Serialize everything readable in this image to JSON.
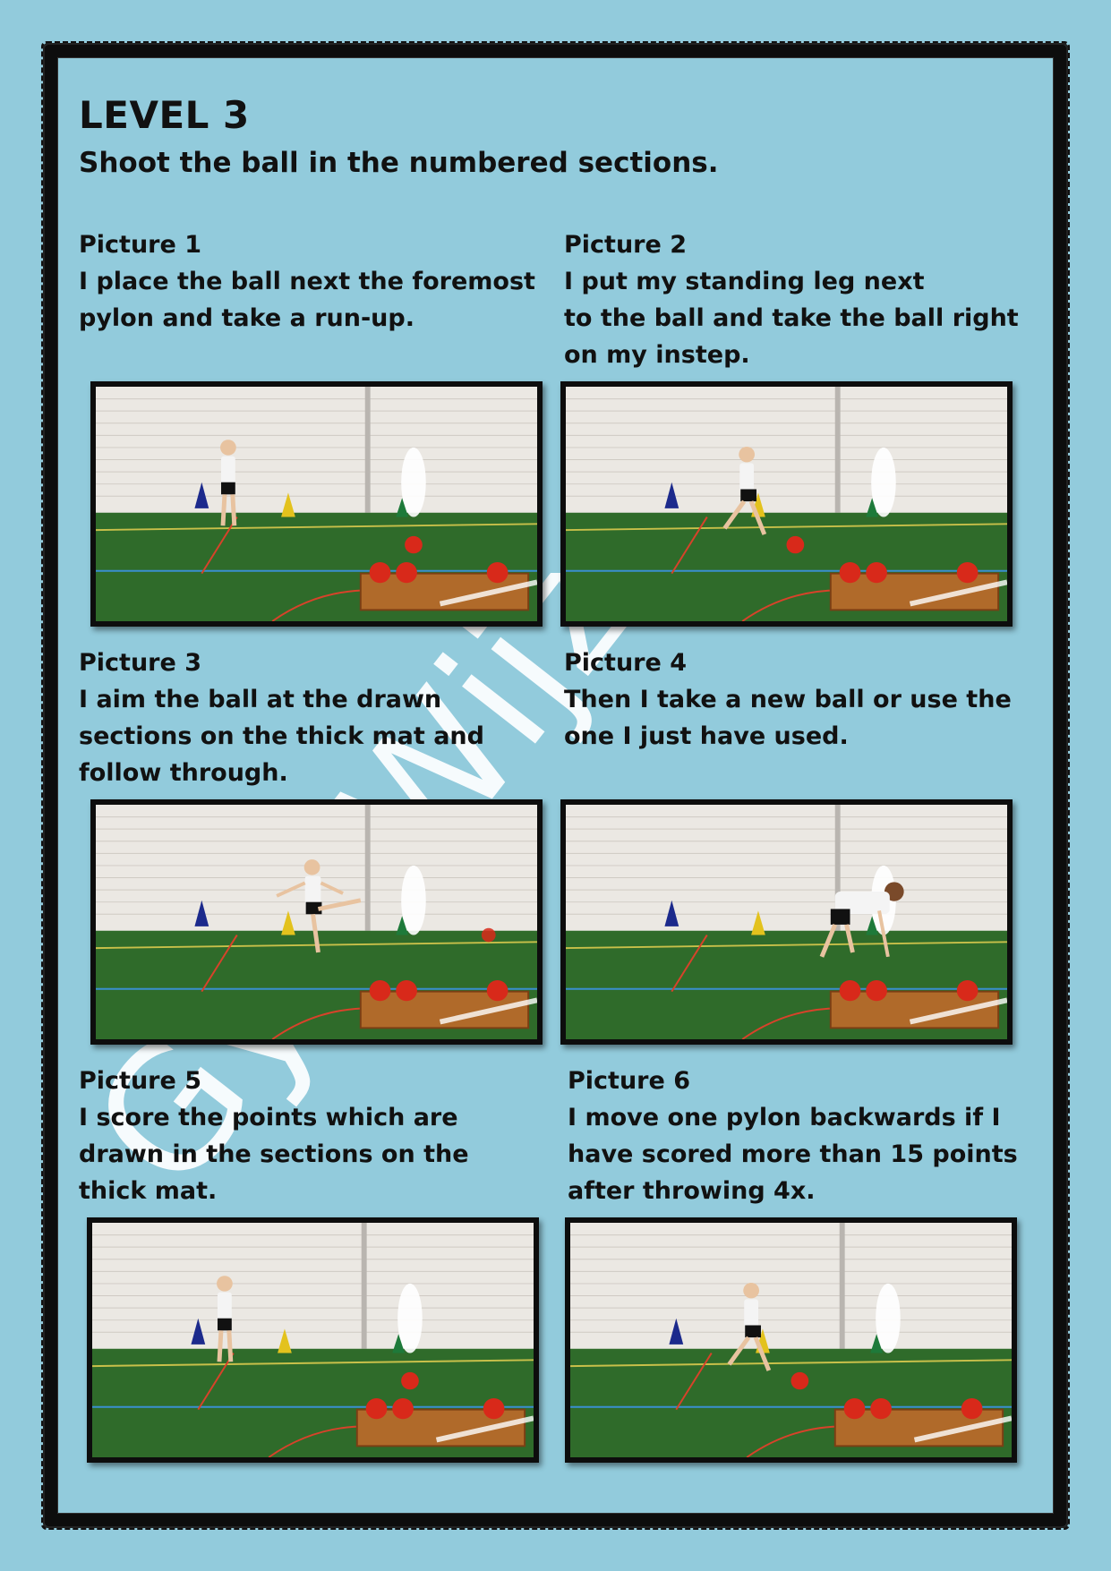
{
  "heading": "LEVEL 3",
  "subheading": "Shoot the ball in the numbered sections.",
  "watermark_text": "GymWijzer",
  "steps": [
    {
      "title": "Picture 1",
      "text": "I place the ball next the foremost\npylon and take a run-up.",
      "photo_icon": "photo-boy-standing"
    },
    {
      "title": "Picture 2",
      "text": "I put my standing leg next\nto the ball and take the ball right\non my instep.",
      "photo_icon": "photo-boy-kicking"
    },
    {
      "title": "Picture 3",
      "text": "I aim the ball at the drawn\nsections on the thick mat and\nfollow through.",
      "photo_icon": "photo-boy-follow-through"
    },
    {
      "title": "Picture 4",
      "text": "Then I take a new ball or use the\none I just have used.",
      "photo_icon": "photo-boy-picking-ball"
    },
    {
      "title": "Picture 5",
      "text": "I score the points which are\ndrawn in the sections on the\nthick mat.",
      "photo_icon": "photo-boy-standing"
    },
    {
      "title": "Picture 6",
      "text": "I move one pylon backwards if I\nhave scored more than 15 points\nafter throwing 4x.",
      "photo_icon": "photo-boy-kicking"
    }
  ],
  "colors": {
    "background": "#92cbdc",
    "frame": "#0d0d0d",
    "floor": "#2f6b2a",
    "ball": "#d8291a"
  }
}
